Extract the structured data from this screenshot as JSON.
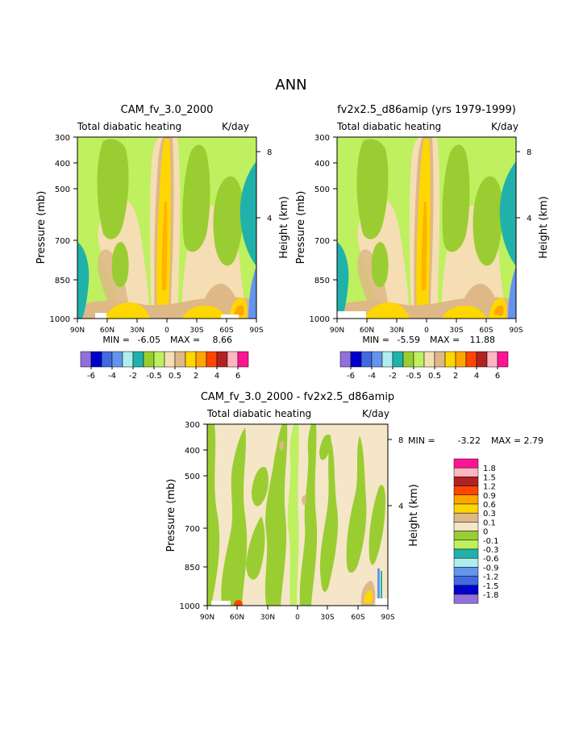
{
  "page_title": "ANN",
  "colors": {
    "levels_abs": [
      "#9370db",
      "#0000cd",
      "#4169e1",
      "#6495ed",
      "#afeeee",
      "#20b2aa",
      "#9acd32",
      "#bef060",
      "#f5deb3",
      "#deb887",
      "#ffd700",
      "#ffa500",
      "#ff4500",
      "#b22222",
      "#ffb6c1",
      "#ff1493"
    ],
    "levels_diff": [
      "#9370db",
      "#0000cd",
      "#4169e1",
      "#6495ed",
      "#afeeee",
      "#20b2aa",
      "#bef060",
      "#9acd32",
      "#f5e6c8",
      "#deb887",
      "#ffd700",
      "#ffa500",
      "#ff4500",
      "#b22222",
      "#ffb6c1",
      "#ff1493"
    ]
  },
  "chart_data": [
    {
      "id": "case1",
      "type": "heatmap",
      "title": "CAM_fv_3.0_2000",
      "variable": "Total diabatic heating",
      "units": "K/day",
      "ylabel": "Pressure (mb)",
      "ylabel_right": "Height (km)",
      "x_ticks": [
        "90N",
        "60N",
        "30N",
        "0",
        "30S",
        "60S",
        "90S"
      ],
      "y_ticks": [
        "300",
        "400",
        "500",
        "700",
        "850",
        "1000"
      ],
      "height_ticks": [
        "8",
        "4"
      ],
      "ylim": [
        1000,
        300
      ],
      "y_scale": "log",
      "min_label": "MIN =",
      "min_value": "-6.05",
      "max_label": "MAX =",
      "max_value": "8.66",
      "legend_labels": [
        "-6",
        "-4",
        "-2",
        "-0.5",
        "0.5",
        "2",
        "4",
        "6"
      ]
    },
    {
      "id": "case2",
      "type": "heatmap",
      "title": "fv2x2.5_d86amip (yrs 1979-1999)",
      "variable": "Total diabatic heating",
      "units": "K/day",
      "ylabel": "Pressure (mb)",
      "ylabel_right": "Height (km)",
      "x_ticks": [
        "90N",
        "60N",
        "30N",
        "0",
        "30S",
        "60S",
        "90S"
      ],
      "y_ticks": [
        "300",
        "400",
        "500",
        "700",
        "850",
        "1000"
      ],
      "height_ticks": [
        "8",
        "4"
      ],
      "ylim": [
        1000,
        300
      ],
      "y_scale": "log",
      "min_label": "MIN =",
      "min_value": "-5.59",
      "max_label": "MAX =",
      "max_value": "11.88",
      "legend_labels": [
        "-6",
        "-4",
        "-2",
        "-0.5",
        "0.5",
        "2",
        "4",
        "6"
      ]
    },
    {
      "id": "diff",
      "type": "heatmap",
      "title": "CAM_fv_3.0_2000 - fv2x2.5_d86amip",
      "variable": "Total diabatic heating",
      "units": "K/day",
      "ylabel": "Pressure (mb)",
      "ylabel_right": "Height (km)",
      "x_ticks": [
        "90N",
        "60N",
        "30N",
        "0",
        "30S",
        "60S",
        "90S"
      ],
      "y_ticks": [
        "300",
        "400",
        "500",
        "700",
        "850",
        "1000"
      ],
      "height_ticks": [
        "8",
        "4"
      ],
      "ylim": [
        1000,
        300
      ],
      "y_scale": "log",
      "min_label": "MIN =",
      "min_value": "-3.22",
      "max_label": "MAX =",
      "max_value": "2.79",
      "legend_labels": [
        "1.8",
        "1.5",
        "1.2",
        "0.9",
        "0.6",
        "0.3",
        "0.1",
        "0",
        "-0.1",
        "-0.3",
        "-0.6",
        "-0.9",
        "-1.2",
        "-1.5",
        "-1.8"
      ]
    }
  ]
}
